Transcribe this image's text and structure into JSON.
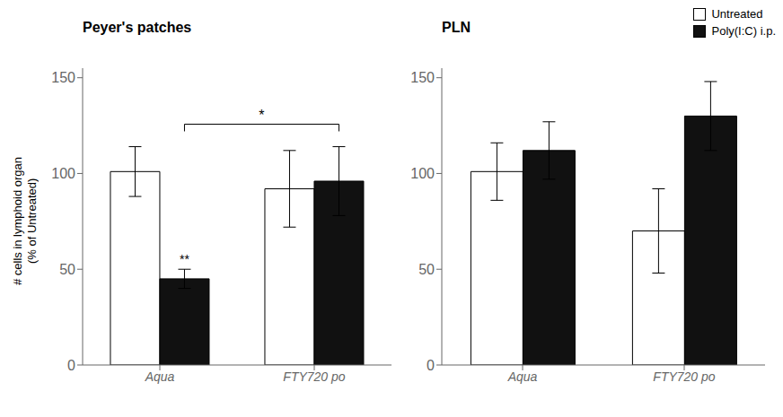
{
  "chart_data": [
    {
      "type": "bar",
      "title": "Peyer's patches",
      "ylabel": "# cells in lymphoid organ\n(% of Untreated)",
      "categories": [
        "Aqua",
        "FTY720 po"
      ],
      "series": [
        {
          "name": "Untreated",
          "color": "#ffffff",
          "values": [
            101,
            92
          ],
          "errors": [
            13,
            20
          ]
        },
        {
          "name": "Poly(I:C) i.p.",
          "color": "#111111",
          "values": [
            45,
            96
          ],
          "errors": [
            5,
            18
          ]
        }
      ],
      "ylim": [
        0,
        155
      ],
      "yticks": [
        0,
        50,
        100,
        150
      ],
      "annotations": [
        {
          "text": "**",
          "category": "Aqua",
          "series": "Poly(I:C) i.p."
        },
        {
          "text": "*",
          "from": {
            "category": "Aqua",
            "series": "Poly(I:C) i.p."
          },
          "to": {
            "category": "FTY720 po",
            "series": "Poly(I:C) i.p."
          },
          "y": 122
        }
      ]
    },
    {
      "type": "bar",
      "title": "PLN",
      "categories": [
        "Aqua",
        "FTY720 po"
      ],
      "series": [
        {
          "name": "Untreated",
          "color": "#ffffff",
          "values": [
            101,
            70
          ],
          "errors": [
            15,
            22
          ]
        },
        {
          "name": "Poly(I:C) i.p.",
          "color": "#111111",
          "values": [
            112,
            130
          ],
          "errors": [
            15,
            18
          ]
        }
      ],
      "ylim": [
        0,
        155
      ],
      "yticks": [
        0,
        50,
        100,
        150
      ],
      "legend": "upper right"
    }
  ]
}
